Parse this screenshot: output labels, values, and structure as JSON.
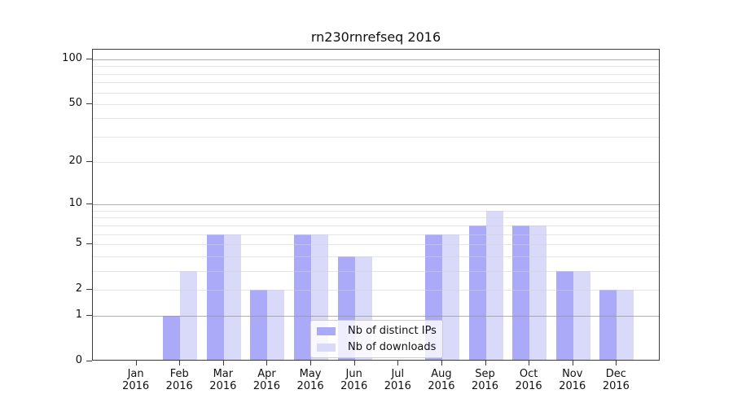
{
  "chart_data": {
    "type": "bar",
    "title": "rn230rnrefseq 2016",
    "categories": [
      "Jan",
      "Feb",
      "Mar",
      "Apr",
      "May",
      "Jun",
      "Jul",
      "Aug",
      "Sep",
      "Oct",
      "Nov",
      "Dec"
    ],
    "category_year": "2016",
    "series": [
      {
        "name": "Nb of distinct IPs",
        "color": "#aaaaf9",
        "values": [
          0,
          1,
          6,
          2,
          6,
          4,
          0,
          6,
          7,
          7,
          3,
          2
        ]
      },
      {
        "name": "Nb of downloads",
        "color": "#d9d9f9",
        "values": [
          0,
          3,
          6,
          2,
          6,
          4,
          0,
          6,
          9,
          7,
          3,
          2
        ]
      }
    ],
    "yscale": "log1p",
    "ylim": [
      0,
      100
    ],
    "yticks": [
      {
        "value": 0,
        "label": "0"
      },
      {
        "value": 1,
        "label": "1"
      },
      {
        "value": 2,
        "label": "2"
      },
      {
        "value": 5,
        "label": "5"
      },
      {
        "value": 10,
        "label": "10"
      },
      {
        "value": 20,
        "label": "20"
      },
      {
        "value": 50,
        "label": "50"
      },
      {
        "value": 100,
        "label": "100"
      }
    ],
    "grid_major": [
      1,
      10,
      100
    ],
    "grid_minor": [
      2,
      3,
      4,
      5,
      6,
      7,
      8,
      9,
      20,
      30,
      40,
      50,
      60,
      70,
      80,
      90
    ],
    "legend_position": "lower center",
    "grid": "horizontal"
  },
  "colors": {
    "spine": "#3a3a3a",
    "text": "#111111",
    "grid_minor": "#d0d0d0",
    "grid_major": "#969696"
  }
}
